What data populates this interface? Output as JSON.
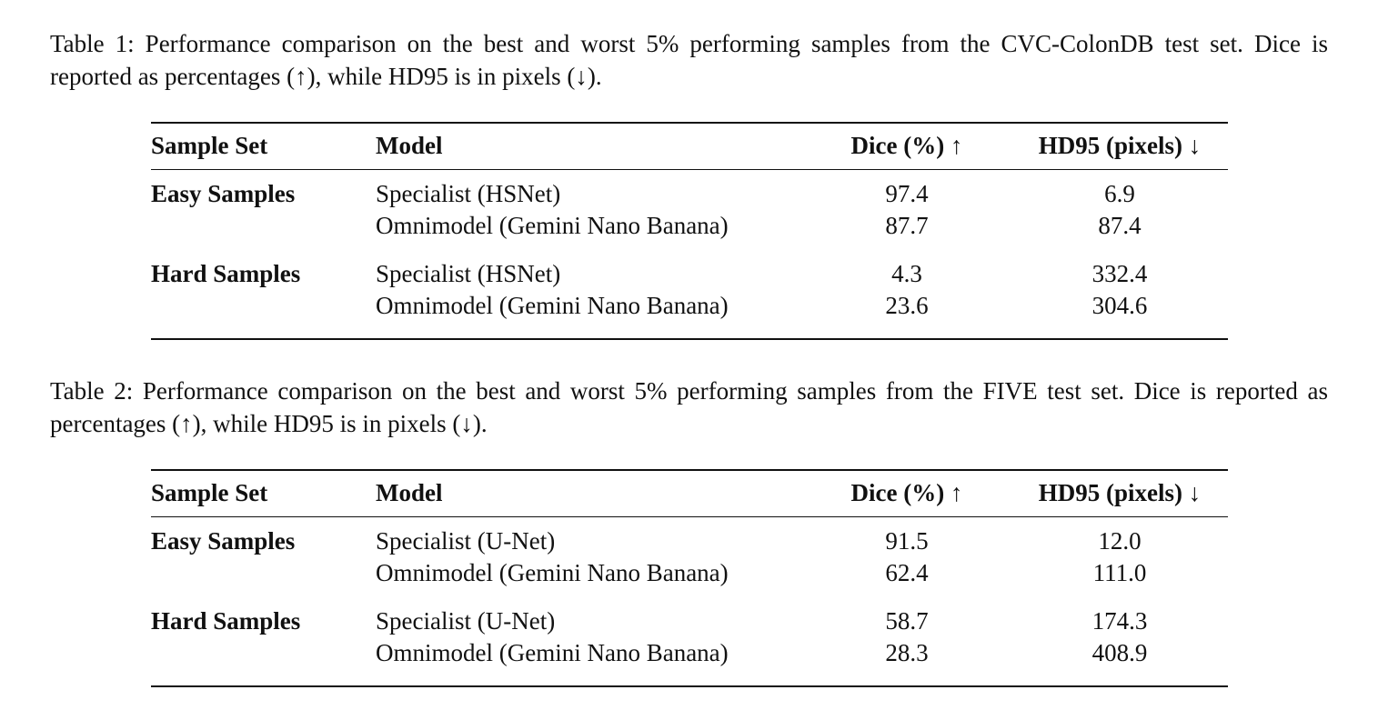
{
  "tables": [
    {
      "caption": "Table 1: Performance comparison on the best and worst 5% performing samples from the CVC-ColonDB test set. Dice is reported as percentages (↑), while HD95 is in pixels (↓).",
      "header": [
        "Sample Set",
        "Model",
        "Dice (%) ↑",
        "HD95 (pixels) ↓"
      ],
      "groups": [
        {
          "label": "Easy Samples",
          "rows": [
            [
              "Specialist (HSNet)",
              "97.4",
              "6.9"
            ],
            [
              "Omnimodel (Gemini Nano Banana)",
              "87.7",
              "87.4"
            ]
          ]
        },
        {
          "label": "Hard Samples",
          "rows": [
            [
              "Specialist (HSNet)",
              "4.3",
              "332.4"
            ],
            [
              "Omnimodel (Gemini Nano Banana)",
              "23.6",
              "304.6"
            ]
          ]
        }
      ]
    },
    {
      "caption": "Table 2: Performance comparison on the best and worst 5% performing samples from the FIVE test set. Dice is reported as percentages (↑), while HD95 is in pixels (↓).",
      "header": [
        "Sample Set",
        "Model",
        "Dice (%) ↑",
        "HD95 (pixels) ↓"
      ],
      "groups": [
        {
          "label": "Easy Samples",
          "rows": [
            [
              "Specialist (U-Net)",
              "91.5",
              "12.0"
            ],
            [
              "Omnimodel (Gemini Nano Banana)",
              "62.4",
              "111.0"
            ]
          ]
        },
        {
          "label": "Hard Samples",
          "rows": [
            [
              "Specialist (U-Net)",
              "58.7",
              "174.3"
            ],
            [
              "Omnimodel (Gemini Nano Banana)",
              "28.3",
              "408.9"
            ]
          ]
        }
      ]
    }
  ]
}
